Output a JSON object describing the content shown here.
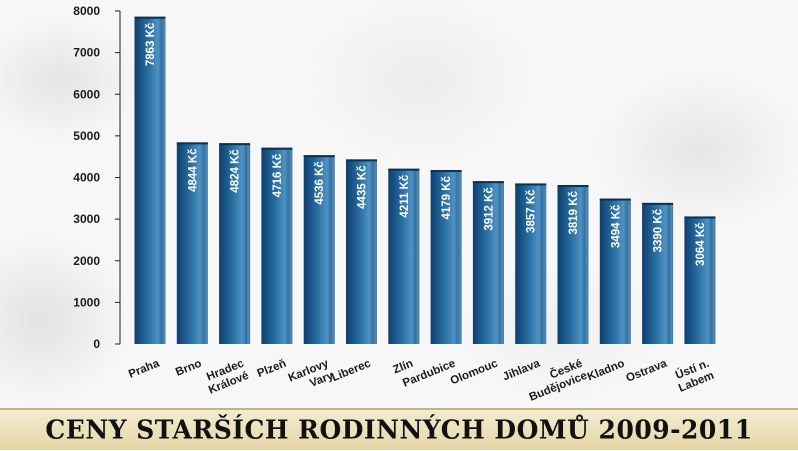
{
  "chart_data": {
    "type": "bar",
    "title": "CENY STARŠÍCH RODINNÝCH DOMŮ 2009-2011",
    "categories": [
      [
        "Praha"
      ],
      [
        "Brno"
      ],
      [
        "Hradec",
        "Králové"
      ],
      [
        "Plzeň"
      ],
      [
        "Karlovy",
        "Vary"
      ],
      [
        "Liberec"
      ],
      [
        "Zlín"
      ],
      [
        "Pardubice"
      ],
      [
        "Olomouc"
      ],
      [
        "Jihlava"
      ],
      [
        "České",
        "Budějovice"
      ],
      [
        "Kladno"
      ],
      [
        "Ostrava"
      ],
      [
        "Ústí n.",
        "Labem"
      ]
    ],
    "values": [
      7863,
      4844,
      4824,
      4716,
      4536,
      4435,
      4211,
      4179,
      3912,
      3857,
      3819,
      3494,
      3390,
      3064
    ],
    "data_labels": [
      "7863 Kč",
      "4844 Kč",
      "4824 Kč",
      "4716 Kč",
      "4536 Kč",
      "4435 Kč",
      "4211 Kč",
      "4179 Kč",
      "3912 Kč",
      "3857 Kč",
      "3819 Kč",
      "3494 Kč",
      "3390 Kč",
      "3064 Kč"
    ],
    "ylim": [
      0,
      8000
    ],
    "yticks": [
      0,
      1000,
      2000,
      3000,
      4000,
      5000,
      6000,
      7000,
      8000
    ],
    "grid": false,
    "colors": {
      "bar_dark": "#0b3f6e",
      "bar_mid": "#2a6fa2",
      "bar_light": "#4f92c4",
      "bar_side": "#6f9fc6",
      "axis": "#222222"
    }
  }
}
